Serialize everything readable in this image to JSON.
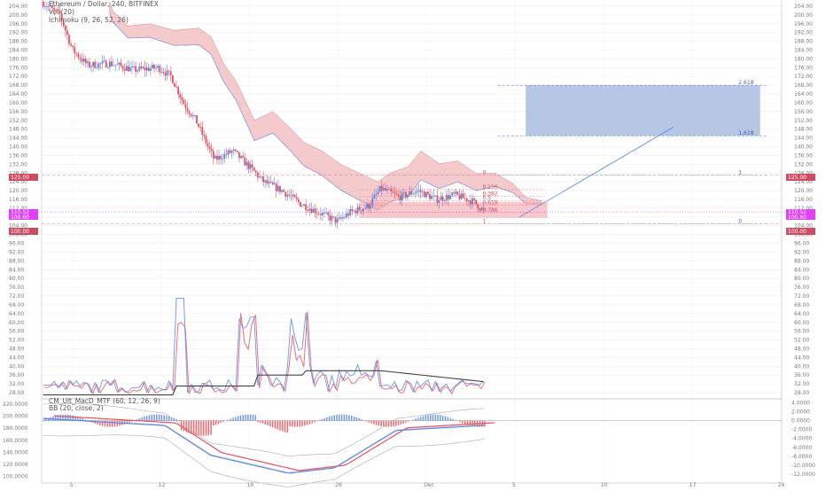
{
  "header": {
    "title": "Ethereum / Dollar, 240, BITFINEX",
    "indicator_1": "Vol (20)",
    "indicator_2": "Ichimoku (9, 26, 52, 26)",
    "macd_title": "CM_Ult_MacD_MTF (60, 12, 26, 9)",
    "bb_title": "BB (20, close, 2)"
  },
  "price_tags": {
    "top": "125.00",
    "current_a": "110.52",
    "current_b": "109.60",
    "bottom": "100.00"
  },
  "colors": {
    "up": "#5b86e5",
    "down": "#e8505b",
    "cloud": "#f2b8bc",
    "target_box": "#a9bde0",
    "tag_red": "#cf4b63",
    "tag_magenta": "#e040fb"
  },
  "chart_data": [
    {
      "type": "candlestick",
      "title": "Ethereum / Dollar, 240, BITFINEX",
      "y_ticks": [
        "204.00",
        "200.00",
        "196.00",
        "192.00",
        "188.00",
        "184.00",
        "180.00",
        "176.00",
        "172.00",
        "168.00",
        "164.00",
        "160.00",
        "156.00",
        "152.00",
        "148.00",
        "144.00",
        "140.00",
        "136.00",
        "132.00",
        "128.00",
        "124.00",
        "120.00",
        "116.00",
        "112.00",
        "108.00",
        "104.00",
        "100.00",
        "96.00",
        "92.00",
        "88.00",
        "84.00",
        "80.00",
        "76.00",
        "72.00",
        "68.00",
        "64.00",
        "60.00",
        "56.00",
        "52.00",
        "48.00",
        "44.00",
        "40.00",
        "36.00",
        "32.00",
        "28.00"
      ],
      "ylim": [
        26,
        206
      ],
      "x_ticks": [
        "5",
        "12",
        "19",
        "26",
        "Dec",
        "5",
        "10",
        "17",
        "24"
      ],
      "price_path": [
        {
          "t": 0.0,
          "p": 206
        },
        {
          "t": 0.6,
          "p": 200
        },
        {
          "t": 1.0,
          "p": 184
        },
        {
          "t": 1.5,
          "p": 177
        },
        {
          "t": 2.2,
          "p": 178
        },
        {
          "t": 3.0,
          "p": 175
        },
        {
          "t": 3.8,
          "p": 176
        },
        {
          "t": 4.2,
          "p": 172
        },
        {
          "t": 4.6,
          "p": 160
        },
        {
          "t": 5.0,
          "p": 152
        },
        {
          "t": 5.6,
          "p": 134
        },
        {
          "t": 6.2,
          "p": 138
        },
        {
          "t": 6.8,
          "p": 130
        },
        {
          "t": 7.2,
          "p": 124
        },
        {
          "t": 7.8,
          "p": 120
        },
        {
          "t": 8.4,
          "p": 114
        },
        {
          "t": 9.0,
          "p": 110
        },
        {
          "t": 9.6,
          "p": 106
        },
        {
          "t": 10.0,
          "p": 110
        },
        {
          "t": 10.6,
          "p": 113
        },
        {
          "t": 11.0,
          "p": 121
        },
        {
          "t": 11.6,
          "p": 117
        },
        {
          "t": 12.2,
          "p": 120
        },
        {
          "t": 12.8,
          "p": 116
        },
        {
          "t": 13.4,
          "p": 118
        },
        {
          "t": 14.0,
          "p": 115
        },
        {
          "t": 14.4,
          "p": 110
        }
      ],
      "fib_levels": [
        {
          "label": "0",
          "value": 127
        },
        {
          "label": "0.236",
          "value": 120.5
        },
        {
          "label": "0.382",
          "value": 117.5
        },
        {
          "label": "0.5",
          "value": 115.5
        },
        {
          "label": "0.618",
          "value": 113.3
        },
        {
          "label": "0.786",
          "value": 110
        },
        {
          "label": "1",
          "value": 105
        }
      ],
      "projection_levels": [
        {
          "label": "2.618",
          "value": 168
        },
        {
          "label": "1.618",
          "value": 145
        },
        {
          "label": "1",
          "value": 127
        },
        {
          "label": "0",
          "value": 105
        }
      ],
      "projection_line": {
        "from": {
          "t": 15.5,
          "p": 108
        },
        "to": {
          "t": 20.5,
          "p": 149
        }
      },
      "target_box": {
        "from_t": 15.7,
        "to_t": 23.3,
        "top": 168,
        "bottom": 145
      },
      "volume_baseline": 26
    },
    {
      "type": "histogram",
      "title": "CM_Ult_MacD_MTF (60, 12, 26, 9)",
      "y_ticks_left": [
        "220.0000",
        "200.0000",
        "180.0000",
        "160.0000",
        "140.0000",
        "120.0000",
        "100.0000"
      ],
      "y_ticks_right": [
        "4.0000",
        "2.0000",
        "0.0000",
        "-2.0000",
        "-4.0000",
        "-6.0000",
        "-8.0000",
        "-10.0000",
        "-12.0000"
      ],
      "ylim": [
        -13,
        4.5
      ]
    }
  ]
}
